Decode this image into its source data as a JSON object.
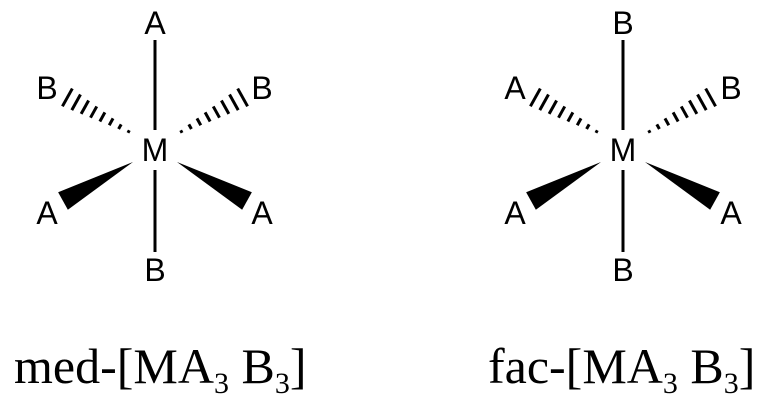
{
  "structures": [
    {
      "id": "mer",
      "center": "M",
      "top": "A",
      "bottom": "B",
      "upper_left": "B",
      "upper_right": "B",
      "lower_left": "A",
      "lower_right": "A",
      "caption": {
        "prefix": "med-[MA",
        "sub1": "3",
        "mid": " B",
        "sub2": "3",
        "suffix": "]"
      }
    },
    {
      "id": "fac",
      "center": "M",
      "top": "B",
      "bottom": "B",
      "upper_left": "A",
      "upper_right": "B",
      "lower_left": "A",
      "lower_right": "A",
      "caption": {
        "prefix": "fac-[MA",
        "sub1": "3",
        "mid": " B",
        "sub2": "3",
        "suffix": "]"
      }
    }
  ]
}
